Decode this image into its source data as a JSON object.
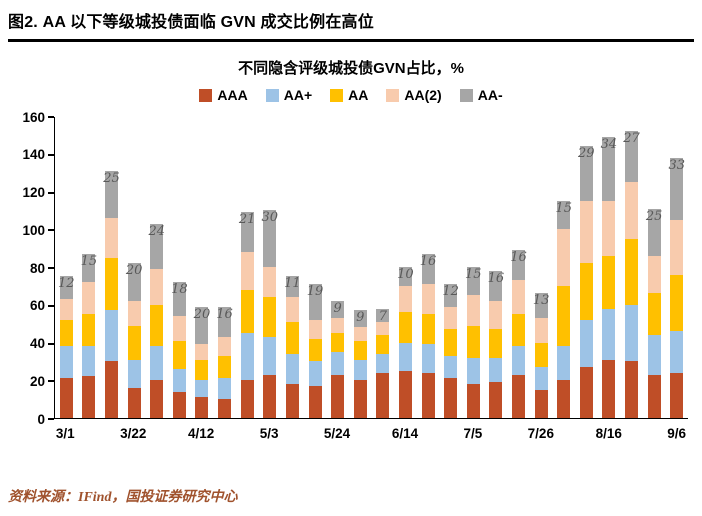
{
  "header": {
    "title": "图2. AA 以下等级城投债面临 GVN 成交比例在高位"
  },
  "footer": {
    "source": "资料来源：IFind，国投证券研究中心"
  },
  "chart_data": {
    "type": "bar",
    "stacked": true,
    "title": "不同隐含评级城投债GVN占比，%",
    "legend_position": "top",
    "grid": false,
    "ylim": [
      0,
      160
    ],
    "yticks": [
      0,
      20,
      40,
      60,
      80,
      100,
      120,
      140,
      160
    ],
    "series": [
      {
        "name": "AAA",
        "color": "#BF4E27"
      },
      {
        "name": "AA+",
        "color": "#9DC3E6"
      },
      {
        "name": "AA",
        "color": "#FFC000"
      },
      {
        "name": "AA(2)",
        "color": "#F8CBAD"
      },
      {
        "name": "AA-",
        "color": "#A6A6A6"
      }
    ],
    "x_tick_labels": [
      "3/1",
      "3/22",
      "4/12",
      "5/3",
      "5/24",
      "6/14",
      "7/5",
      "7/26",
      "8/16",
      "9/6"
    ],
    "x_tick_positions": [
      0,
      3,
      6,
      9,
      12,
      15,
      18,
      21,
      24,
      27
    ],
    "bars": [
      {
        "values": [
          21,
          17,
          14,
          11,
          12
        ],
        "label": "12"
      },
      {
        "values": [
          22,
          16,
          17,
          17,
          15
        ],
        "label": "15"
      },
      {
        "values": [
          30,
          27,
          28,
          21,
          25
        ],
        "label": "25"
      },
      {
        "values": [
          16,
          15,
          18,
          13,
          20
        ],
        "label": "20"
      },
      {
        "values": [
          20,
          18,
          22,
          19,
          24
        ],
        "label": "24"
      },
      {
        "values": [
          14,
          12,
          15,
          13,
          18
        ],
        "label": "18"
      },
      {
        "values": [
          11,
          9,
          11,
          8,
          20
        ],
        "label": "20"
      },
      {
        "values": [
          10,
          11,
          12,
          10,
          16
        ],
        "label": "16"
      },
      {
        "values": [
          20,
          25,
          23,
          20,
          21
        ],
        "label": "21"
      },
      {
        "values": [
          23,
          20,
          21,
          16,
          30
        ],
        "label": "30"
      },
      {
        "values": [
          18,
          16,
          17,
          13,
          11
        ],
        "label": "11"
      },
      {
        "values": [
          17,
          13,
          12,
          10,
          19
        ],
        "label": "19"
      },
      {
        "values": [
          23,
          12,
          10,
          8,
          9
        ],
        "label": "9"
      },
      {
        "values": [
          20,
          11,
          10,
          7,
          9
        ],
        "label": "9"
      },
      {
        "values": [
          24,
          10,
          10,
          7,
          7
        ],
        "label": "7"
      },
      {
        "values": [
          25,
          15,
          16,
          14,
          10
        ],
        "label": "10"
      },
      {
        "values": [
          24,
          15,
          16,
          16,
          16
        ],
        "label": "16"
      },
      {
        "values": [
          21,
          12,
          14,
          12,
          12
        ],
        "label": "12"
      },
      {
        "values": [
          18,
          14,
          17,
          16,
          15
        ],
        "label": "15"
      },
      {
        "values": [
          19,
          13,
          15,
          15,
          16
        ],
        "label": "16"
      },
      {
        "values": [
          23,
          15,
          17,
          18,
          16
        ],
        "label": "16"
      },
      {
        "values": [
          15,
          12,
          13,
          13,
          13
        ],
        "label": "13"
      },
      {
        "values": [
          20,
          18,
          32,
          30,
          15
        ],
        "label": "15"
      },
      {
        "values": [
          27,
          25,
          30,
          33,
          29
        ],
        "label": "29"
      },
      {
        "values": [
          31,
          27,
          28,
          29,
          34
        ],
        "label": "34"
      },
      {
        "values": [
          30,
          30,
          35,
          30,
          27
        ],
        "label": "27"
      },
      {
        "values": [
          23,
          21,
          22,
          20,
          25
        ],
        "label": "25"
      },
      {
        "values": [
          24,
          22,
          30,
          29,
          33
        ],
        "label": "33"
      }
    ]
  }
}
